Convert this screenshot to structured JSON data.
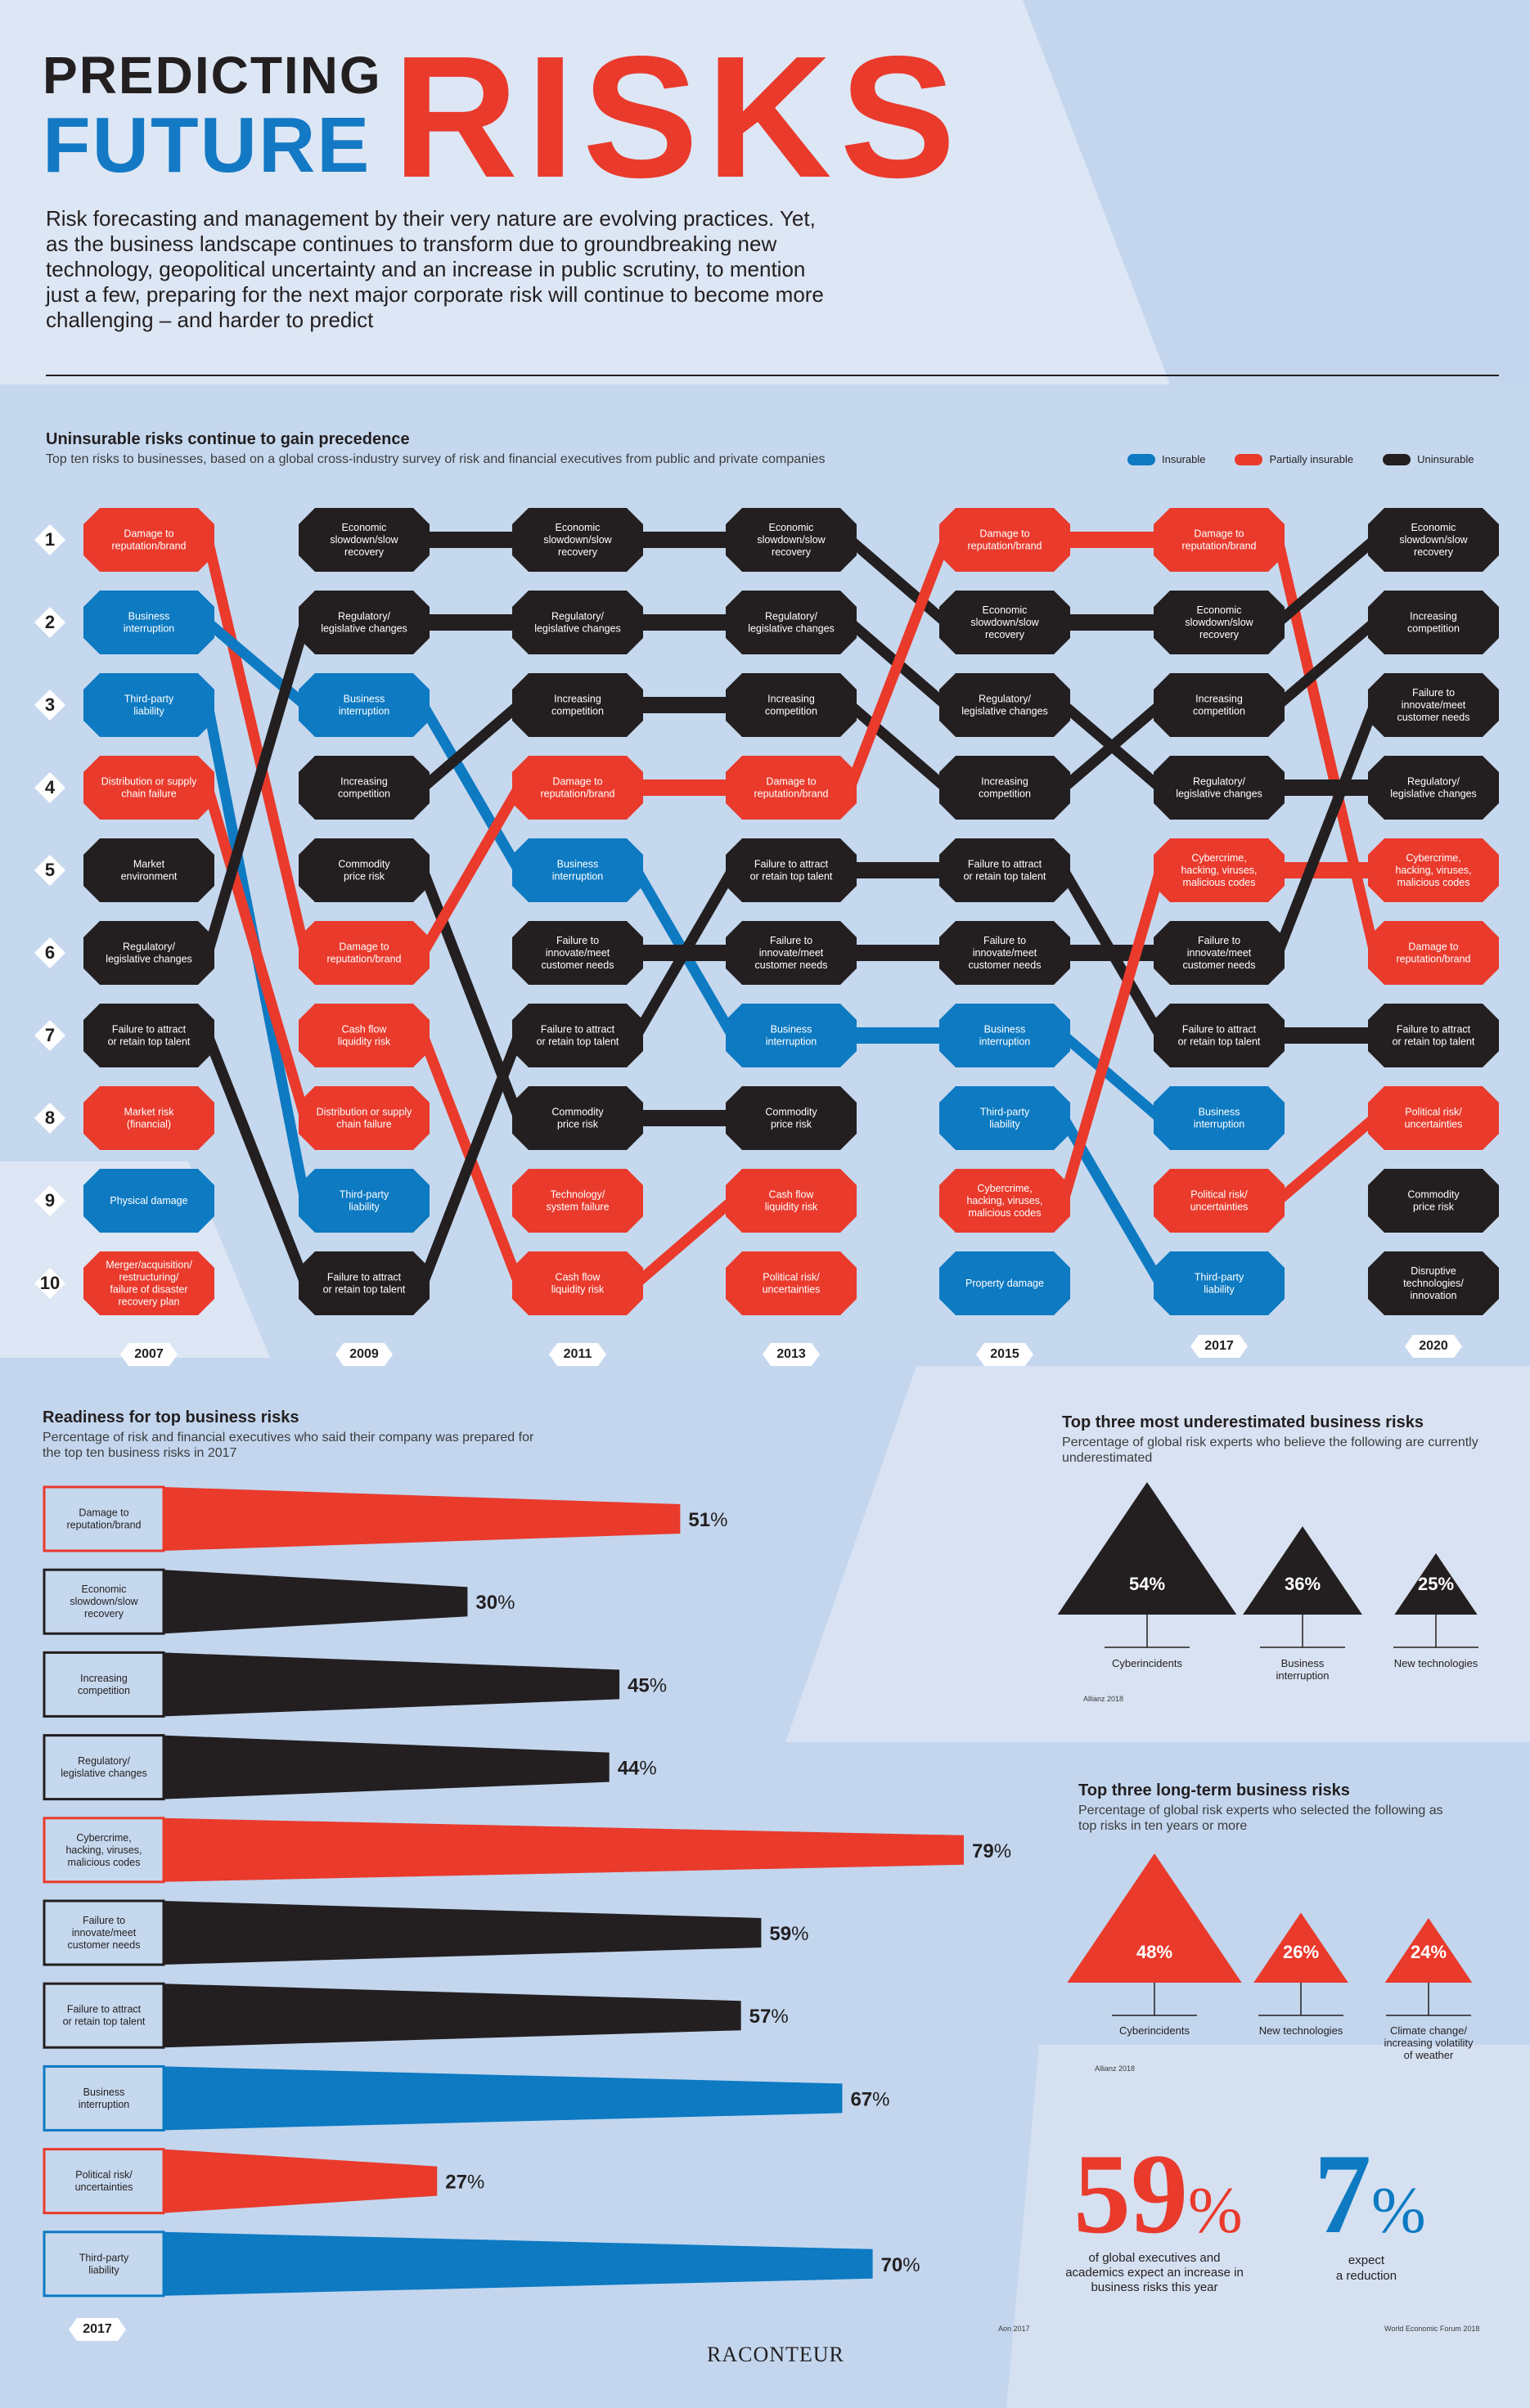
{
  "header": {
    "line1": "PREDICTING",
    "line2": "FUTURE",
    "line3": "RISKS",
    "intro": "Risk forecasting and management by their very nature are evolving practices. Yet, as the business landscape continues to transform due to groundbreaking new technology, geopolitical uncertainty and an increase in public scrutiny, to mention just a few, preparing for the next major corporate risk will continue to become more challenging – and harder to predict"
  },
  "colors": {
    "insurable": "#0d7ac2",
    "partially_insurable": "#e93a2c",
    "uninsurable": "#231f20"
  },
  "rank_section": {
    "title": "Uninsurable risks continue to gain precedence",
    "subtitle": "Top ten risks to businesses, based on a global cross-industry survey of risk and financial executives from public and private companies",
    "legend": [
      {
        "label": "Insurable",
        "key": "insurable"
      },
      {
        "label": "Partially insurable",
        "key": "partially_insurable"
      },
      {
        "label": "Uninsurable",
        "key": "uninsurable"
      }
    ],
    "ranks": [
      "1",
      "2",
      "3",
      "4",
      "5",
      "6",
      "7",
      "8",
      "9",
      "10"
    ]
  },
  "chart_data": [
    {
      "type": "table",
      "title": "Uninsurable risks continue to gain precedence",
      "columns": [
        "2007",
        "2009",
        "2011",
        "2013",
        "2015",
        "2017",
        "2020"
      ],
      "rankings": [
        [
          {
            "label": "Damage to\nreputation/brand",
            "cat": "partially_insurable"
          },
          {
            "label": "Business\ninterruption",
            "cat": "insurable"
          },
          {
            "label": "Third-party\nliability",
            "cat": "insurable"
          },
          {
            "label": "Distribution or supply\nchain failure",
            "cat": "partially_insurable"
          },
          {
            "label": "Market\nenvironment",
            "cat": "uninsurable"
          },
          {
            "label": "Regulatory/\nlegislative changes",
            "cat": "uninsurable"
          },
          {
            "label": "Failure to attract\nor retain top talent",
            "cat": "uninsurable"
          },
          {
            "label": "Market risk\n(financial)",
            "cat": "partially_insurable"
          },
          {
            "label": "Physical damage",
            "cat": "insurable"
          },
          {
            "label": "Merger/acquisition/\nrestructuring/\nfailure of disaster\nrecovery plan",
            "cat": "partially_insurable"
          }
        ],
        [
          {
            "label": "Economic\nslowdown/slow\nrecovery",
            "cat": "uninsurable"
          },
          {
            "label": "Regulatory/\nlegislative changes",
            "cat": "uninsurable"
          },
          {
            "label": "Business\ninterruption",
            "cat": "insurable"
          },
          {
            "label": "Increasing\ncompetition",
            "cat": "uninsurable"
          },
          {
            "label": "Commodity\nprice risk",
            "cat": "uninsurable"
          },
          {
            "label": "Damage to\nreputation/brand",
            "cat": "partially_insurable"
          },
          {
            "label": "Cash flow\nliquidity risk",
            "cat": "partially_insurable"
          },
          {
            "label": "Distribution or supply\nchain failure",
            "cat": "partially_insurable"
          },
          {
            "label": "Third-party\nliability",
            "cat": "insurable"
          },
          {
            "label": "Failure to attract\nor retain top talent",
            "cat": "uninsurable"
          }
        ],
        [
          {
            "label": "Economic\nslowdown/slow\nrecovery",
            "cat": "uninsurable"
          },
          {
            "label": "Regulatory/\nlegislative changes",
            "cat": "uninsurable"
          },
          {
            "label": "Increasing\ncompetition",
            "cat": "uninsurable"
          },
          {
            "label": "Damage to\nreputation/brand",
            "cat": "partially_insurable"
          },
          {
            "label": "Business\ninterruption",
            "cat": "insurable"
          },
          {
            "label": "Failure to\ninnovate/meet\ncustomer needs",
            "cat": "uninsurable"
          },
          {
            "label": "Failure to attract\nor retain top talent",
            "cat": "uninsurable"
          },
          {
            "label": "Commodity\nprice risk",
            "cat": "uninsurable"
          },
          {
            "label": "Technology/\nsystem failure",
            "cat": "partially_insurable"
          },
          {
            "label": "Cash flow\nliquidity risk",
            "cat": "partially_insurable"
          }
        ],
        [
          {
            "label": "Economic\nslowdown/slow\nrecovery",
            "cat": "uninsurable"
          },
          {
            "label": "Regulatory/\nlegislative changes",
            "cat": "uninsurable"
          },
          {
            "label": "Increasing\ncompetition",
            "cat": "uninsurable"
          },
          {
            "label": "Damage to\nreputation/brand",
            "cat": "partially_insurable"
          },
          {
            "label": "Failure to attract\nor retain top talent",
            "cat": "uninsurable"
          },
          {
            "label": "Failure to\ninnovate/meet\ncustomer needs",
            "cat": "uninsurable"
          },
          {
            "label": "Business\ninterruption",
            "cat": "insurable"
          },
          {
            "label": "Commodity\nprice risk",
            "cat": "uninsurable"
          },
          {
            "label": "Cash flow\nliquidity risk",
            "cat": "partially_insurable"
          },
          {
            "label": "Political risk/\nuncertainties",
            "cat": "partially_insurable"
          }
        ],
        [
          {
            "label": "Damage to\nreputation/brand",
            "cat": "partially_insurable"
          },
          {
            "label": "Economic\nslowdown/slow\nrecovery",
            "cat": "uninsurable"
          },
          {
            "label": "Regulatory/\nlegislative changes",
            "cat": "uninsurable"
          },
          {
            "label": "Increasing\ncompetition",
            "cat": "uninsurable"
          },
          {
            "label": "Failure to attract\nor retain top talent",
            "cat": "uninsurable"
          },
          {
            "label": "Failure to\ninnovate/meet\ncustomer needs",
            "cat": "uninsurable"
          },
          {
            "label": "Business\ninterruption",
            "cat": "insurable"
          },
          {
            "label": "Third-party\nliability",
            "cat": "insurable"
          },
          {
            "label": "Cybercrime,\nhacking, viruses,\nmalicious codes",
            "cat": "partially_insurable"
          },
          {
            "label": "Property damage",
            "cat": "insurable"
          }
        ],
        [
          {
            "label": "Damage to\nreputation/brand",
            "cat": "partially_insurable"
          },
          {
            "label": "Economic\nslowdown/slow\nrecovery",
            "cat": "uninsurable"
          },
          {
            "label": "Increasing\ncompetition",
            "cat": "uninsurable"
          },
          {
            "label": "Regulatory/\nlegislative changes",
            "cat": "uninsurable"
          },
          {
            "label": "Cybercrime,\nhacking, viruses,\nmalicious codes",
            "cat": "partially_insurable"
          },
          {
            "label": "Failure to\ninnovate/meet\ncustomer needs",
            "cat": "uninsurable"
          },
          {
            "label": "Failure to attract\nor retain top talent",
            "cat": "uninsurable"
          },
          {
            "label": "Business\ninterruption",
            "cat": "insurable"
          },
          {
            "label": "Political risk/\nuncertainties",
            "cat": "partially_insurable"
          },
          {
            "label": "Third-party\nliability",
            "cat": "insurable"
          }
        ],
        [
          {
            "label": "Economic\nslowdown/slow\nrecovery",
            "cat": "uninsurable"
          },
          {
            "label": "Increasing\ncompetition",
            "cat": "uninsurable"
          },
          {
            "label": "Failure to\ninnovate/meet\ncustomer needs",
            "cat": "uninsurable"
          },
          {
            "label": "Regulatory/\nlegislative changes",
            "cat": "uninsurable"
          },
          {
            "label": "Cybercrime,\nhacking, viruses,\nmalicious codes",
            "cat": "partially_insurable"
          },
          {
            "label": "Damage to\nreputation/brand",
            "cat": "partially_insurable"
          },
          {
            "label": "Failure to attract\nor retain top talent",
            "cat": "uninsurable"
          },
          {
            "label": "Political risk/\nuncertainties",
            "cat": "partially_insurable"
          },
          {
            "label": "Commodity\nprice risk",
            "cat": "uninsurable"
          },
          {
            "label": "Disruptive\ntechnologies/\ninnovation",
            "cat": "uninsurable"
          }
        ]
      ]
    },
    {
      "type": "bar",
      "title": "Readiness for top business risks",
      "subtitle": "Percentage of risk and financial executives who said their company was prepared for the top ten business risks in 2017",
      "categories": [
        "Damage to\nreputation/brand",
        "Economic\nslowdown/slow\nrecovery",
        "Increasing\ncompetition",
        "Regulatory/\nlegislative changes",
        "Cybercrime,\nhacking, viruses,\nmalicious codes",
        "Failure to\ninnovate/meet\ncustomer needs",
        "Failure to attract\nor retain top talent",
        "Business\ninterruption",
        "Political risk/\nuncertainties",
        "Third-party\nliability"
      ],
      "values": [
        51,
        30,
        45,
        44,
        79,
        59,
        57,
        67,
        27,
        70
      ],
      "cats": [
        "partially_insurable",
        "uninsurable",
        "uninsurable",
        "uninsurable",
        "partially_insurable",
        "uninsurable",
        "uninsurable",
        "insurable",
        "partially_insurable",
        "insurable"
      ],
      "year": "2017",
      "source": "Aon 2017"
    },
    {
      "type": "bar",
      "title": "Top three most underestimated business risks",
      "subtitle": "Percentage of global risk experts who believe the following are currently underestimated",
      "categories": [
        "Cyberincidents",
        "Business\ninterruption",
        "New technologies"
      ],
      "values": [
        54,
        36,
        25
      ],
      "source": "Allianz 2018"
    },
    {
      "type": "bar",
      "title": "Top three long-term business risks",
      "subtitle": "Percentage of global risk experts who selected the following as top risks in ten years or more",
      "categories": [
        "Cyberincidents",
        "New technologies",
        "Climate change/\nincreasing volatility\nof weather"
      ],
      "values": [
        48,
        26,
        24
      ],
      "source": "Allianz 2018"
    }
  ],
  "stats": {
    "a_value": "59",
    "a_sym": "%",
    "a_text": "of global executives and academics expect an increase in business risks this year",
    "b_value": "7",
    "b_sym": "%",
    "b_text": "expect\na reduction",
    "source": "World Economic Forum 2018"
  },
  "footer": {
    "brand": "RACONTEUR"
  }
}
